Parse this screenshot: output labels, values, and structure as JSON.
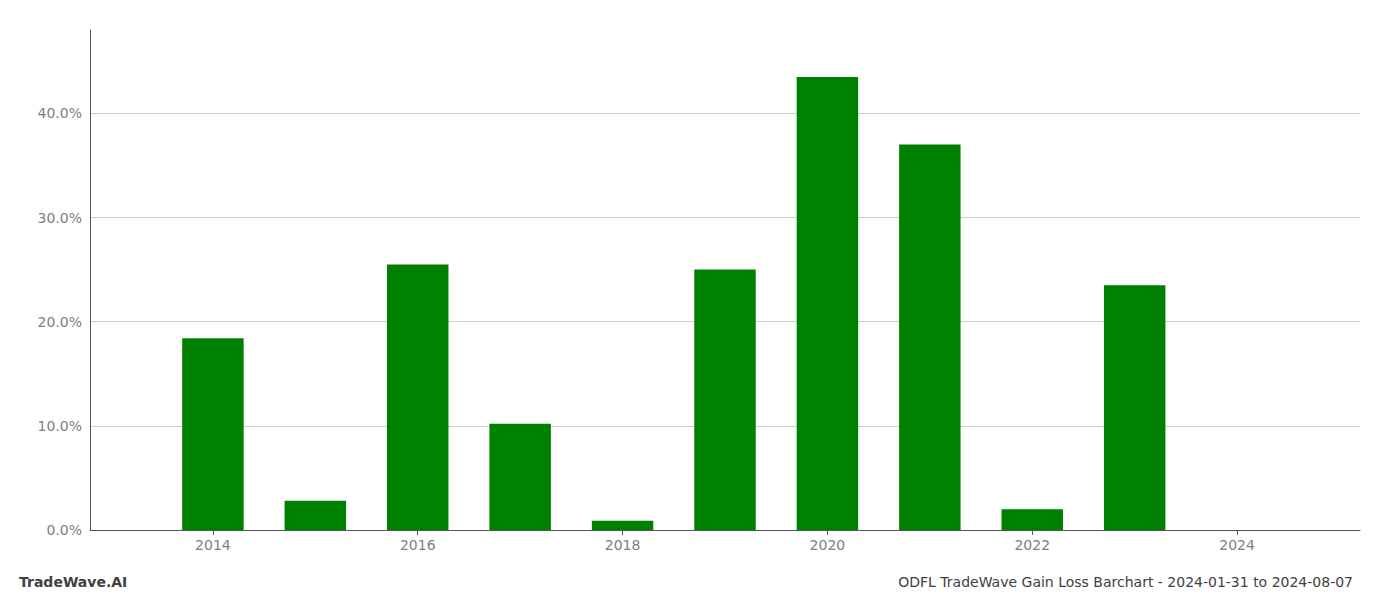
{
  "chart_data": {
    "type": "bar",
    "title": "ODFL TradeWave Gain Loss Barchart - 2024-01-31 to 2024-08-07",
    "annotations": [
      "TradeWave.AI"
    ],
    "x": [
      2014,
      2015,
      2016,
      2017,
      2018,
      2019,
      2020,
      2021,
      2022,
      2023,
      2024
    ],
    "values": [
      0.184,
      0.028,
      0.255,
      0.102,
      0.009,
      0.25,
      0.435,
      0.37,
      0.02,
      0.235,
      0.0
    ],
    "color": "#008000",
    "xlim": [
      2012.8,
      2025.2
    ],
    "xticks": [
      2014,
      2016,
      2018,
      2020,
      2022,
      2024
    ],
    "ylim": [
      0,
      0.48
    ],
    "yticks": [
      {
        "value": 0.0,
        "label": "0.0%"
      },
      {
        "value": 0.1,
        "label": "10.0%"
      },
      {
        "value": 0.2,
        "label": "20.0%"
      },
      {
        "value": 0.3,
        "label": "30.0%"
      },
      {
        "value": 0.4,
        "label": "40.0%"
      }
    ],
    "grid": true
  }
}
